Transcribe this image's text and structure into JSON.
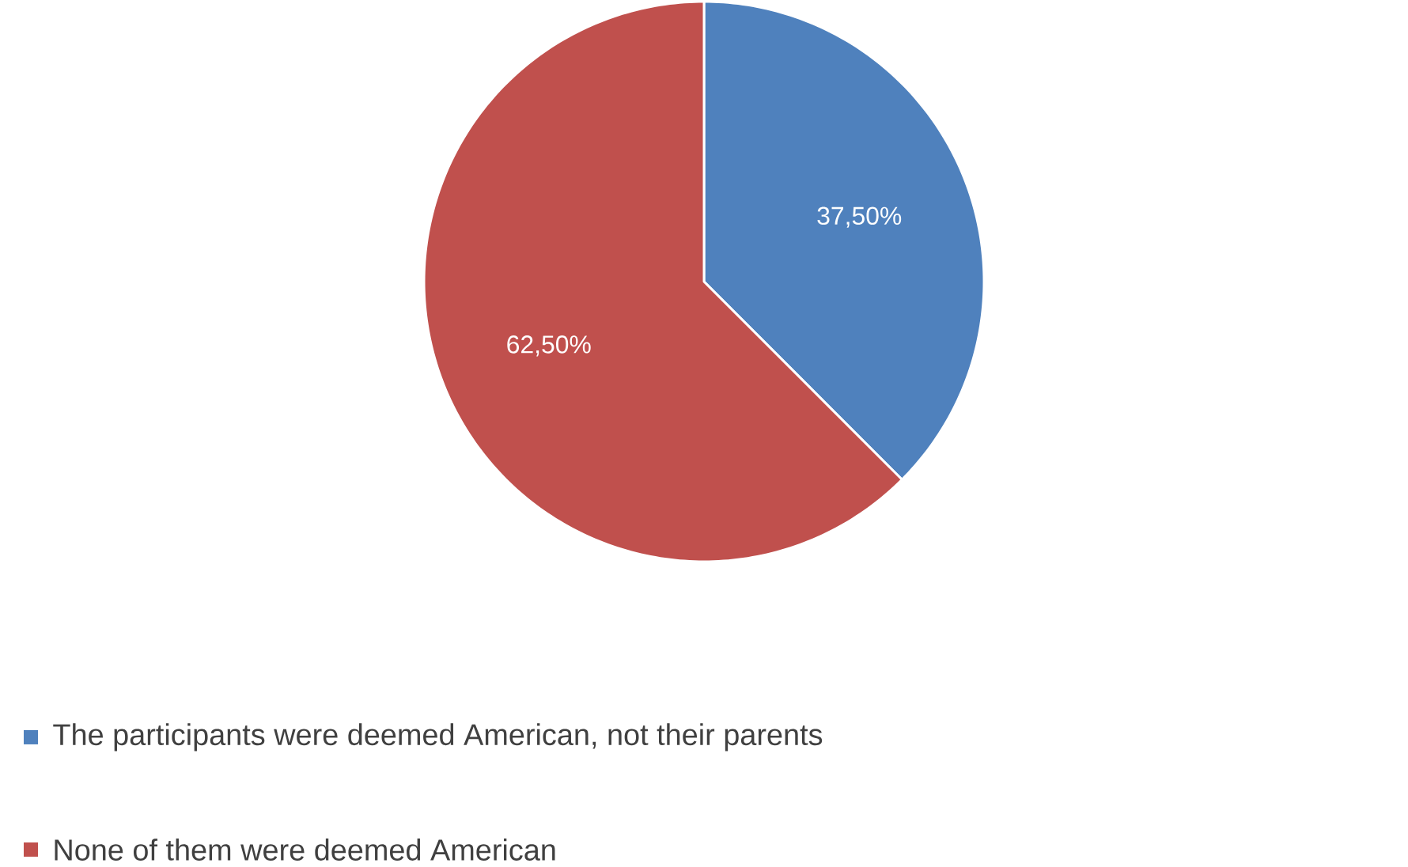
{
  "chart_data": {
    "type": "pie",
    "categories": [
      "The participants were deemed American, not their parents",
      "None of them were deemed American"
    ],
    "values": [
      37.5,
      62.5
    ],
    "colors": [
      "#4f81bd",
      "#c0504d"
    ],
    "value_labels": [
      "37,50%",
      "62,50%"
    ],
    "legend": "bottom"
  }
}
